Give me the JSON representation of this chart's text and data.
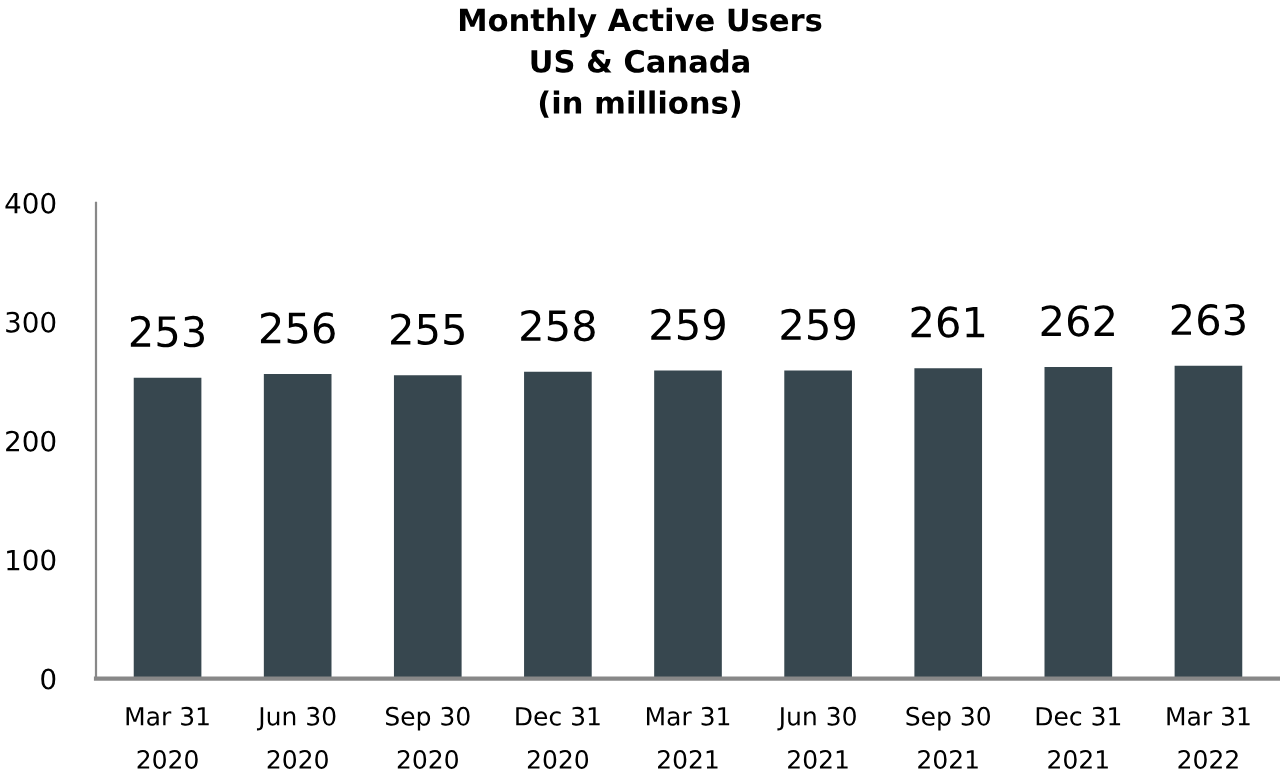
{
  "chart_data": {
    "type": "bar",
    "title": "Monthly Active Users\nUS & Canada\n(in millions)",
    "categories": [
      "Mar 31\n2020",
      "Jun 30\n2020",
      "Sep 30\n2020",
      "Dec 31\n2020",
      "Mar 31\n2021",
      "Jun 30\n2021",
      "Sep 30\n2021",
      "Dec 31\n2021",
      "Mar 31\n2022"
    ],
    "values": [
      253,
      256,
      255,
      258,
      259,
      259,
      261,
      262,
      263
    ],
    "color": "#37474f",
    "ylim": [
      0,
      400
    ],
    "yticks": [
      0,
      100,
      200,
      300,
      400
    ],
    "data_labels": true,
    "grid": false,
    "legend": false
  }
}
